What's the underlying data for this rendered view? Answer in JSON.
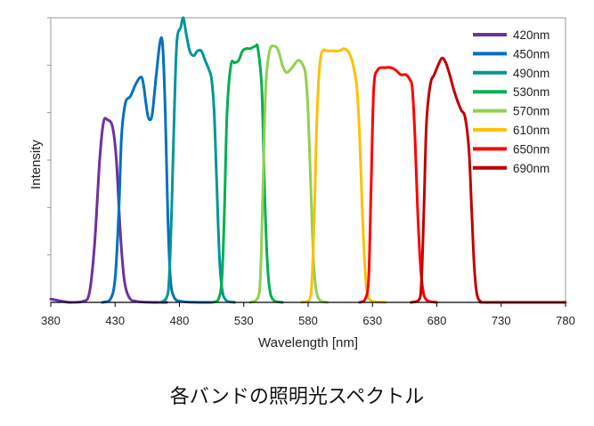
{
  "caption": "各バンドの照明光スペクトル",
  "chart_data": {
    "type": "line",
    "xlabel": "Wavelength [nm]",
    "ylabel": "Intensity",
    "xlim": [
      380,
      780
    ],
    "ylim": [
      0,
      6
    ],
    "xticks": [
      380,
      430,
      480,
      530,
      580,
      630,
      680,
      730,
      780
    ],
    "yticks_unlabeled": [
      1,
      2,
      3,
      4,
      5,
      6
    ],
    "grid": false,
    "legend_position": "top-right",
    "series": [
      {
        "name": "420nm",
        "color": "#7030A0",
        "points": [
          [
            380,
            0.07
          ],
          [
            395,
            0.0
          ],
          [
            405,
            0.02
          ],
          [
            410,
            0.2
          ],
          [
            414,
            1.2
          ],
          [
            418,
            3.0
          ],
          [
            421,
            3.8
          ],
          [
            424,
            3.85
          ],
          [
            428,
            3.7
          ],
          [
            431,
            3.0
          ],
          [
            434,
            1.5
          ],
          [
            437,
            0.5
          ],
          [
            441,
            0.1
          ],
          [
            447,
            0.02
          ],
          [
            460,
            0.0
          ],
          [
            470,
            0.0
          ]
        ]
      },
      {
        "name": "450nm",
        "color": "#0070C0",
        "points": [
          [
            420,
            0.0
          ],
          [
            426,
            0.05
          ],
          [
            430,
            0.5
          ],
          [
            433,
            2.0
          ],
          [
            435,
            3.5
          ],
          [
            438,
            4.2
          ],
          [
            442,
            4.35
          ],
          [
            446,
            4.6
          ],
          [
            450,
            4.75
          ],
          [
            452,
            4.6
          ],
          [
            455,
            4.0
          ],
          [
            457,
            3.85
          ],
          [
            459,
            4.0
          ],
          [
            462,
            4.8
          ],
          [
            465,
            5.5
          ],
          [
            467,
            5.4
          ],
          [
            469,
            4.0
          ],
          [
            471,
            1.8
          ],
          [
            473,
            0.5
          ],
          [
            476,
            0.1
          ],
          [
            482,
            0.02
          ],
          [
            495,
            0.0
          ],
          [
            505,
            0.0
          ]
        ]
      },
      {
        "name": "490nm",
        "color": "#00959A",
        "points": [
          [
            465,
            0.0
          ],
          [
            470,
            0.1
          ],
          [
            472,
            0.5
          ],
          [
            474,
            2.0
          ],
          [
            476,
            4.0
          ],
          [
            478,
            5.5
          ],
          [
            481,
            5.8
          ],
          [
            483,
            6.0
          ],
          [
            485,
            5.7
          ],
          [
            488,
            5.3
          ],
          [
            491,
            5.2
          ],
          [
            494,
            5.3
          ],
          [
            497,
            5.3
          ],
          [
            500,
            5.1
          ],
          [
            503,
            4.9
          ],
          [
            505,
            4.7
          ],
          [
            507,
            4.0
          ],
          [
            509,
            2.5
          ],
          [
            511,
            1.0
          ],
          [
            513,
            0.3
          ],
          [
            516,
            0.05
          ],
          [
            523,
            0.0
          ]
        ]
      },
      {
        "name": "530nm",
        "color": "#00B050",
        "points": [
          [
            505,
            0.0
          ],
          [
            510,
            0.05
          ],
          [
            513,
            0.5
          ],
          [
            515,
            2.0
          ],
          [
            517,
            4.0
          ],
          [
            520,
            5.0
          ],
          [
            523,
            5.05
          ],
          [
            526,
            5.1
          ],
          [
            529,
            5.3
          ],
          [
            532,
            5.35
          ],
          [
            535,
            5.35
          ],
          [
            539,
            5.4
          ],
          [
            541,
            5.35
          ],
          [
            544,
            4.5
          ],
          [
            546,
            2.5
          ],
          [
            548,
            1.0
          ],
          [
            550,
            0.3
          ],
          [
            553,
            0.05
          ],
          [
            560,
            0.0
          ]
        ]
      },
      {
        "name": "570nm",
        "color": "#92D050",
        "points": [
          [
            535,
            0.0
          ],
          [
            541,
            0.1
          ],
          [
            543,
            0.6
          ],
          [
            545,
            2.5
          ],
          [
            547,
            4.5
          ],
          [
            550,
            5.3
          ],
          [
            554,
            5.4
          ],
          [
            557,
            5.3
          ],
          [
            560,
            5.0
          ],
          [
            563,
            4.85
          ],
          [
            566,
            4.9
          ],
          [
            569,
            5.0
          ],
          [
            572,
            5.1
          ],
          [
            575,
            5.05
          ],
          [
            578,
            4.8
          ],
          [
            580,
            4.0
          ],
          [
            582,
            2.5
          ],
          [
            584,
            1.0
          ],
          [
            586,
            0.3
          ],
          [
            589,
            0.05
          ],
          [
            595,
            0.0
          ]
        ]
      },
      {
        "name": "610nm",
        "color": "#FFC000",
        "points": [
          [
            575,
            0.0
          ],
          [
            581,
            0.05
          ],
          [
            583,
            0.5
          ],
          [
            585,
            2.0
          ],
          [
            587,
            4.0
          ],
          [
            590,
            5.2
          ],
          [
            596,
            5.3
          ],
          [
            604,
            5.3
          ],
          [
            608,
            5.35
          ],
          [
            612,
            5.25
          ],
          [
            615,
            5.0
          ],
          [
            618,
            4.5
          ],
          [
            620,
            3.5
          ],
          [
            622,
            2.0
          ],
          [
            624,
            0.8
          ],
          [
            626,
            0.2
          ],
          [
            630,
            0.02
          ],
          [
            640,
            0.0
          ]
        ]
      },
      {
        "name": "650nm",
        "color": "#FF0000",
        "points": [
          [
            620,
            0.0
          ],
          [
            624,
            0.05
          ],
          [
            627,
            0.5
          ],
          [
            629,
            2.5
          ],
          [
            631,
            4.5
          ],
          [
            634,
            4.9
          ],
          [
            640,
            4.95
          ],
          [
            644,
            4.95
          ],
          [
            648,
            4.9
          ],
          [
            652,
            4.8
          ],
          [
            656,
            4.8
          ],
          [
            659,
            4.7
          ],
          [
            661,
            4.5
          ],
          [
            663,
            3.5
          ],
          [
            665,
            2.0
          ],
          [
            667,
            0.9
          ],
          [
            669,
            0.3
          ],
          [
            672,
            0.05
          ],
          [
            680,
            0.0
          ]
        ]
      },
      {
        "name": "690nm",
        "color": "#C00000",
        "points": [
          [
            660,
            0.0
          ],
          [
            666,
            0.05
          ],
          [
            668,
            0.4
          ],
          [
            670,
            2.0
          ],
          [
            672,
            3.8
          ],
          [
            675,
            4.6
          ],
          [
            678,
            4.8
          ],
          [
            681,
            5.0
          ],
          [
            684,
            5.15
          ],
          [
            687,
            5.05
          ],
          [
            690,
            4.8
          ],
          [
            693,
            4.5
          ],
          [
            696,
            4.25
          ],
          [
            699,
            4.05
          ],
          [
            702,
            3.9
          ],
          [
            705,
            3.2
          ],
          [
            707,
            2.0
          ],
          [
            709,
            0.8
          ],
          [
            711,
            0.2
          ],
          [
            714,
            0.02
          ],
          [
            720,
            0.0
          ],
          [
            780,
            0.0
          ]
        ]
      }
    ]
  }
}
